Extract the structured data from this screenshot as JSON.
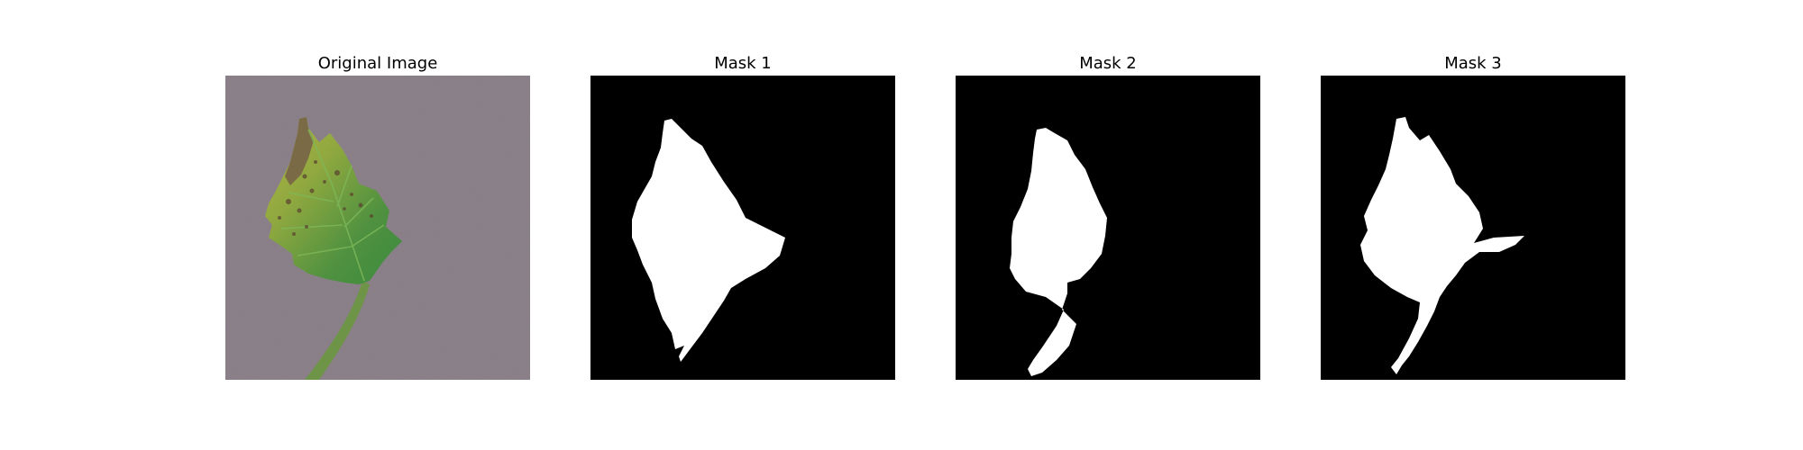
{
  "panels": [
    {
      "title": "Original Image"
    },
    {
      "title": "Mask 1"
    },
    {
      "title": "Mask 2"
    },
    {
      "title": "Mask 3"
    }
  ],
  "colors": {
    "background": "#ffffff",
    "mask_background": "#000000",
    "mask_foreground": "#ffffff",
    "surface": "#8a7f88",
    "leaf_green": "#4f8f3a",
    "leaf_yellow": "#a8b042",
    "stem_green": "#6f9448",
    "spot_brown": "#5b4630"
  }
}
